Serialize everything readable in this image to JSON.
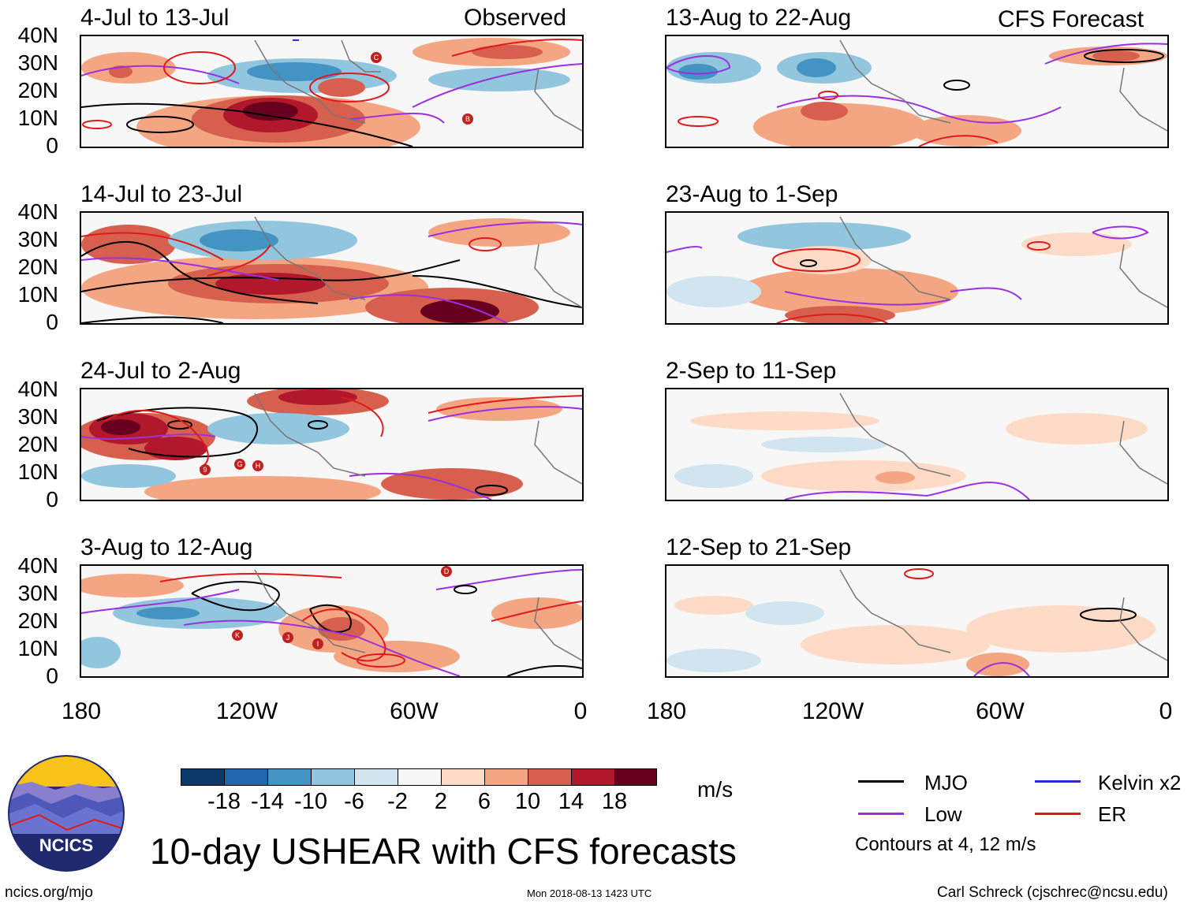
{
  "observed_tag": "Observed",
  "forecast_tag": "CFS Forecast",
  "panels": [
    {
      "title": "4-Jul to 13-Jul"
    },
    {
      "title": "14-Jul to 23-Jul"
    },
    {
      "title": "24-Jul to 2-Aug"
    },
    {
      "title": "3-Aug to 12-Aug"
    },
    {
      "title": "13-Aug to 22-Aug"
    },
    {
      "title": "23-Aug to 1-Sep"
    },
    {
      "title": "2-Sep to 11-Sep"
    },
    {
      "title": "12-Sep to 21-Sep"
    }
  ],
  "lat_ticks": [
    "40N",
    "30N",
    "20N",
    "10N",
    "0"
  ],
  "lon_ticks": [
    "180",
    "120W",
    "60W",
    "0"
  ],
  "storm_labels": {
    "panel1": [
      "C",
      "B"
    ],
    "panel3": [
      "9",
      "G",
      "H"
    ],
    "panel4": [
      "D",
      "K",
      "J",
      "I"
    ]
  },
  "colorbar": {
    "colors": [
      "#0d3a6b",
      "#2166ac",
      "#4393c3",
      "#92c5de",
      "#d1e5f0",
      "#f7f7f7",
      "#fddbc7",
      "#f4a582",
      "#d6604d",
      "#b2182b",
      "#67001f"
    ],
    "labels": [
      "-18",
      "-14",
      "-10",
      "-6",
      "-2",
      "2",
      "6",
      "10",
      "14",
      "18"
    ],
    "units": "m/s"
  },
  "legend": {
    "items": [
      {
        "label": "MJO",
        "color": "#000000"
      },
      {
        "label": "Kelvin x2",
        "color": "#2b2bd6"
      },
      {
        "label": "Low",
        "color": "#9b30e0"
      },
      {
        "label": "ER",
        "color": "#e01a1a"
      }
    ],
    "contour_note": "Contours at 4, 12 m/s"
  },
  "logo_text": "NCICS",
  "main_title": "10-day USHEAR with CFS forecasts",
  "footer": {
    "left": "ncics.org/mjo",
    "center": "Mon 2018-08-13 1423 UTC",
    "right": "Carl Schreck (cjschrec@ncsu.edu)"
  }
}
